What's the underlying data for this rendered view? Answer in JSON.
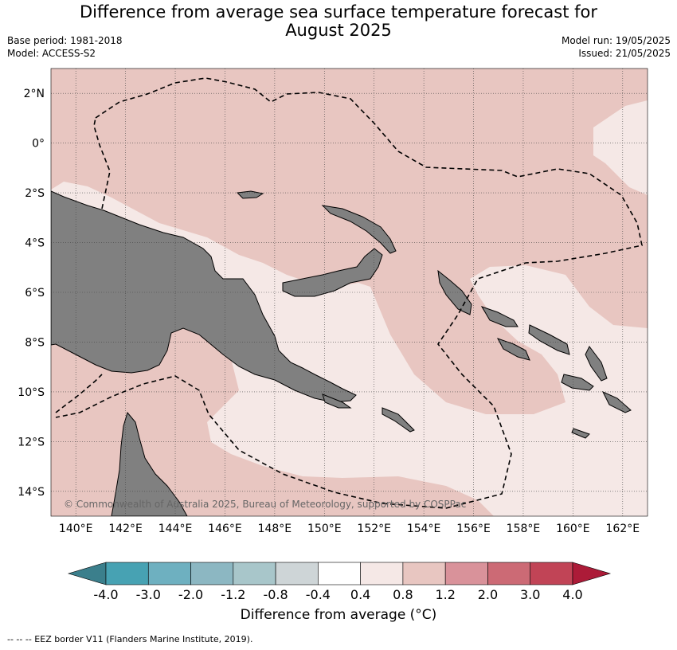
{
  "header": {
    "title_line1": "Difference from average sea surface temperature forecast for",
    "title_line2": "August 2025",
    "base_period": "Base period: 1981-2018",
    "model": "Model: ACCESS-S2",
    "model_run": "Model run: 19/05/2025",
    "issued": "Issued: 21/05/2025"
  },
  "map": {
    "lon_labels": [
      "140°E",
      "142°E",
      "144°E",
      "146°E",
      "148°E",
      "150°E",
      "152°E",
      "154°E",
      "156°E",
      "158°E",
      "160°E",
      "162°E"
    ],
    "lat_labels": [
      "2°N",
      "0°",
      "2°S",
      "4°S",
      "6°S",
      "8°S",
      "10°S",
      "12°S",
      "14°S"
    ],
    "lon_range": [
      139,
      163
    ],
    "lat_range": [
      -15,
      3
    ],
    "copyright": "© Commonwealth of Australia 2025, Bureau of Meteorology, supported by COSPPac",
    "colors": {
      "anomaly_0_8_to_1_2": "#e8c6c1",
      "anomaly_0_4_to_0_8": "#f5e8e6",
      "land": "#808080",
      "eez_border": "#000000"
    }
  },
  "colorbar": {
    "title": "Difference from average (°C)",
    "ticks": [
      "-4.0",
      "-3.0",
      "-2.0",
      "-1.2",
      "-0.8",
      "-0.4",
      "0.4",
      "0.8",
      "1.2",
      "2.0",
      "3.0",
      "4.0"
    ],
    "colors": [
      "#3b7f8c",
      "#47a2b3",
      "#6eb0c0",
      "#8cb7c2",
      "#a8c6ca",
      "#ced5d7",
      "#ffffff",
      "#f5e8e6",
      "#e8c6c1",
      "#d9929a",
      "#cc6a75",
      "#c14456",
      "#ac1b38"
    ]
  },
  "footnote": "--  --  -- EEZ border V11 (Flanders Marine Institute, 2019)."
}
